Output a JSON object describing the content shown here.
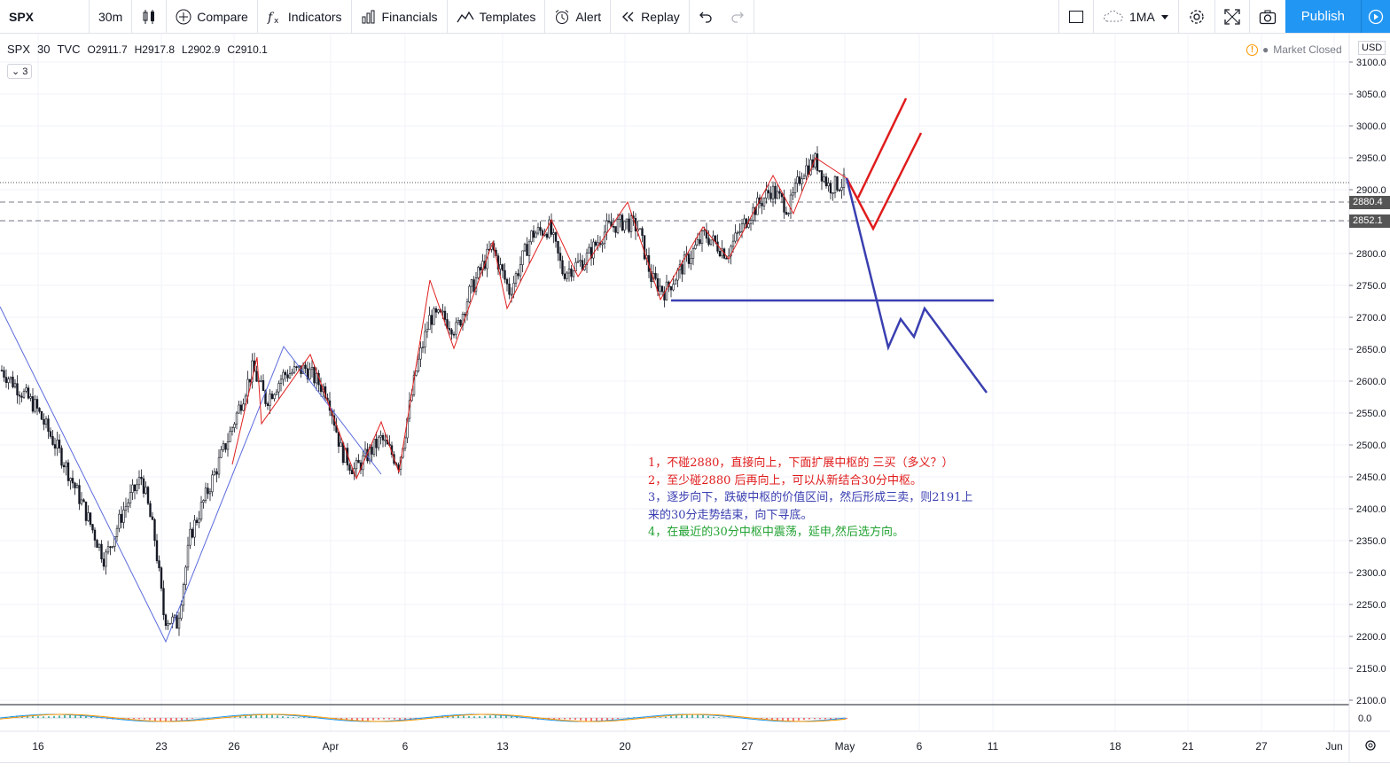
{
  "toolbar": {
    "symbol": "SPX",
    "interval": "30m",
    "compare": "Compare",
    "indicators": "Indicators",
    "financials": "Financials",
    "templates": "Templates",
    "alert": "Alert",
    "replay": "Replay",
    "ma_label": "1MA",
    "publish": "Publish"
  },
  "legend": {
    "symbol": "SPX",
    "interval": "30",
    "source": "TVC",
    "open": "O2911.7",
    "high": "H2917.8",
    "low": "L2902.9",
    "close": "C2910.1",
    "badge": "3"
  },
  "status": {
    "market": "Market Closed",
    "currency": "USD"
  },
  "price_axis": {
    "labels": [
      "3100.0",
      "3050.0",
      "3000.0",
      "2950.0",
      "2900.0",
      "2850.0",
      "2800.0",
      "2750.0",
      "2700.0",
      "2650.0",
      "2600.0",
      "2550.0",
      "2500.0",
      "2450.0",
      "2400.0",
      "2350.0",
      "2300.0",
      "2250.0",
      "2200.0",
      "2150.0",
      "2100.0"
    ],
    "tags": [
      "2880.4",
      "2852.1"
    ],
    "osc_label": "0.0"
  },
  "time_axis": {
    "labels": [
      "16",
      "23",
      "26",
      "Apr",
      "6",
      "13",
      "20",
      "27",
      "May",
      "6",
      "11",
      "18",
      "21",
      "27",
      "Jun"
    ]
  },
  "notes": [
    "1，不碰2880，直接向上，下面扩展中枢的 三买（多义？）",
    "2，至少碰2880 后再向上，可以从新结合30分中枢。",
    "3，逐步向下，跌破中枢的价值区间，然后形成三卖，则2191上",
    "来的30分走势结束，向下寻底。",
    "4，在最近的30分中枢中震荡，延申,然后选方向。"
  ],
  "colors": {
    "accent": "#2196f3",
    "red_line": "#e01b1b",
    "blue_line": "#3a3fb0",
    "green_text": "#22a232",
    "tag_bg": "#555555"
  },
  "chart_data": {
    "type": "candlestick",
    "series": [
      {
        "name": "SPX",
        "values": [
          {
            "x": 0,
            "y": 2620
          },
          {
            "x": 40,
            "y": 2560
          },
          {
            "x": 70,
            "y": 2480
          },
          {
            "x": 95,
            "y": 2400
          },
          {
            "x": 118,
            "y": 2320
          },
          {
            "x": 140,
            "y": 2400
          },
          {
            "x": 160,
            "y": 2450
          },
          {
            "x": 175,
            "y": 2350
          },
          {
            "x": 185,
            "y": 2230
          },
          {
            "x": 200,
            "y": 2220
          },
          {
            "x": 215,
            "y": 2360
          },
          {
            "x": 235,
            "y": 2430
          },
          {
            "x": 260,
            "y": 2520
          },
          {
            "x": 285,
            "y": 2620
          },
          {
            "x": 300,
            "y": 2570
          },
          {
            "x": 320,
            "y": 2610
          },
          {
            "x": 345,
            "y": 2620
          },
          {
            "x": 370,
            "y": 2580
          },
          {
            "x": 385,
            "y": 2490
          },
          {
            "x": 400,
            "y": 2460
          },
          {
            "x": 430,
            "y": 2510
          },
          {
            "x": 450,
            "y": 2470
          },
          {
            "x": 470,
            "y": 2620
          },
          {
            "x": 485,
            "y": 2700
          },
          {
            "x": 500,
            "y": 2700
          },
          {
            "x": 515,
            "y": 2680
          },
          {
            "x": 530,
            "y": 2740
          },
          {
            "x": 555,
            "y": 2810
          },
          {
            "x": 575,
            "y": 2740
          },
          {
            "x": 600,
            "y": 2830
          },
          {
            "x": 620,
            "y": 2840
          },
          {
            "x": 635,
            "y": 2770
          },
          {
            "x": 660,
            "y": 2790
          },
          {
            "x": 685,
            "y": 2840
          },
          {
            "x": 705,
            "y": 2850
          },
          {
            "x": 720,
            "y": 2840
          },
          {
            "x": 735,
            "y": 2760
          },
          {
            "x": 750,
            "y": 2740
          },
          {
            "x": 770,
            "y": 2780
          },
          {
            "x": 795,
            "y": 2830
          },
          {
            "x": 820,
            "y": 2800
          },
          {
            "x": 845,
            "y": 2860
          },
          {
            "x": 870,
            "y": 2900
          },
          {
            "x": 890,
            "y": 2870
          },
          {
            "x": 905,
            "y": 2930
          },
          {
            "x": 920,
            "y": 2945
          },
          {
            "x": 935,
            "y": 2905
          },
          {
            "x": 950,
            "y": 2910
          }
        ]
      }
    ]
  }
}
